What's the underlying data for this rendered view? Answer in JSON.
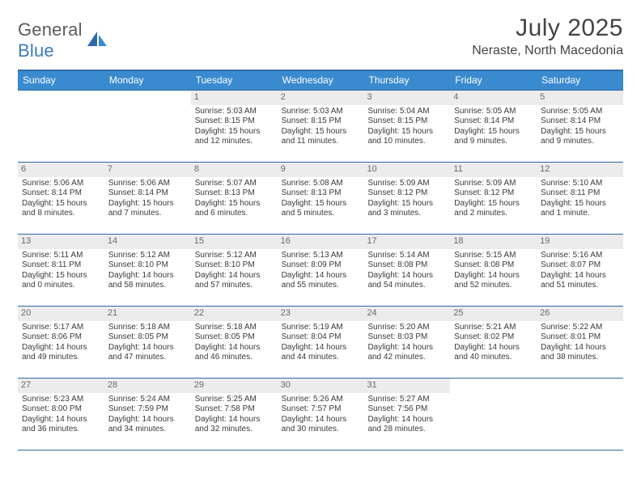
{
  "logo": {
    "text_a": "General",
    "text_b": "Blue"
  },
  "title": "July 2025",
  "location": "Neraste, North Macedonia",
  "header_bg": "#3a8ad0",
  "border_color": "#2f6aa8",
  "daynum_bg": "#ececec",
  "dow": [
    "Sunday",
    "Monday",
    "Tuesday",
    "Wednesday",
    "Thursday",
    "Friday",
    "Saturday"
  ],
  "weeks": [
    [
      null,
      null,
      {
        "n": "1",
        "sr": "Sunrise: 5:03 AM",
        "ss": "Sunset: 8:15 PM",
        "d1": "Daylight: 15 hours",
        "d2": "and 12 minutes."
      },
      {
        "n": "2",
        "sr": "Sunrise: 5:03 AM",
        "ss": "Sunset: 8:15 PM",
        "d1": "Daylight: 15 hours",
        "d2": "and 11 minutes."
      },
      {
        "n": "3",
        "sr": "Sunrise: 5:04 AM",
        "ss": "Sunset: 8:15 PM",
        "d1": "Daylight: 15 hours",
        "d2": "and 10 minutes."
      },
      {
        "n": "4",
        "sr": "Sunrise: 5:05 AM",
        "ss": "Sunset: 8:14 PM",
        "d1": "Daylight: 15 hours",
        "d2": "and 9 minutes."
      },
      {
        "n": "5",
        "sr": "Sunrise: 5:05 AM",
        "ss": "Sunset: 8:14 PM",
        "d1": "Daylight: 15 hours",
        "d2": "and 9 minutes."
      }
    ],
    [
      {
        "n": "6",
        "sr": "Sunrise: 5:06 AM",
        "ss": "Sunset: 8:14 PM",
        "d1": "Daylight: 15 hours",
        "d2": "and 8 minutes."
      },
      {
        "n": "7",
        "sr": "Sunrise: 5:06 AM",
        "ss": "Sunset: 8:14 PM",
        "d1": "Daylight: 15 hours",
        "d2": "and 7 minutes."
      },
      {
        "n": "8",
        "sr": "Sunrise: 5:07 AM",
        "ss": "Sunset: 8:13 PM",
        "d1": "Daylight: 15 hours",
        "d2": "and 6 minutes."
      },
      {
        "n": "9",
        "sr": "Sunrise: 5:08 AM",
        "ss": "Sunset: 8:13 PM",
        "d1": "Daylight: 15 hours",
        "d2": "and 5 minutes."
      },
      {
        "n": "10",
        "sr": "Sunrise: 5:09 AM",
        "ss": "Sunset: 8:12 PM",
        "d1": "Daylight: 15 hours",
        "d2": "and 3 minutes."
      },
      {
        "n": "11",
        "sr": "Sunrise: 5:09 AM",
        "ss": "Sunset: 8:12 PM",
        "d1": "Daylight: 15 hours",
        "d2": "and 2 minutes."
      },
      {
        "n": "12",
        "sr": "Sunrise: 5:10 AM",
        "ss": "Sunset: 8:11 PM",
        "d1": "Daylight: 15 hours",
        "d2": "and 1 minute."
      }
    ],
    [
      {
        "n": "13",
        "sr": "Sunrise: 5:11 AM",
        "ss": "Sunset: 8:11 PM",
        "d1": "Daylight: 15 hours",
        "d2": "and 0 minutes."
      },
      {
        "n": "14",
        "sr": "Sunrise: 5:12 AM",
        "ss": "Sunset: 8:10 PM",
        "d1": "Daylight: 14 hours",
        "d2": "and 58 minutes."
      },
      {
        "n": "15",
        "sr": "Sunrise: 5:12 AM",
        "ss": "Sunset: 8:10 PM",
        "d1": "Daylight: 14 hours",
        "d2": "and 57 minutes."
      },
      {
        "n": "16",
        "sr": "Sunrise: 5:13 AM",
        "ss": "Sunset: 8:09 PM",
        "d1": "Daylight: 14 hours",
        "d2": "and 55 minutes."
      },
      {
        "n": "17",
        "sr": "Sunrise: 5:14 AM",
        "ss": "Sunset: 8:08 PM",
        "d1": "Daylight: 14 hours",
        "d2": "and 54 minutes."
      },
      {
        "n": "18",
        "sr": "Sunrise: 5:15 AM",
        "ss": "Sunset: 8:08 PM",
        "d1": "Daylight: 14 hours",
        "d2": "and 52 minutes."
      },
      {
        "n": "19",
        "sr": "Sunrise: 5:16 AM",
        "ss": "Sunset: 8:07 PM",
        "d1": "Daylight: 14 hours",
        "d2": "and 51 minutes."
      }
    ],
    [
      {
        "n": "20",
        "sr": "Sunrise: 5:17 AM",
        "ss": "Sunset: 8:06 PM",
        "d1": "Daylight: 14 hours",
        "d2": "and 49 minutes."
      },
      {
        "n": "21",
        "sr": "Sunrise: 5:18 AM",
        "ss": "Sunset: 8:05 PM",
        "d1": "Daylight: 14 hours",
        "d2": "and 47 minutes."
      },
      {
        "n": "22",
        "sr": "Sunrise: 5:18 AM",
        "ss": "Sunset: 8:05 PM",
        "d1": "Daylight: 14 hours",
        "d2": "and 46 minutes."
      },
      {
        "n": "23",
        "sr": "Sunrise: 5:19 AM",
        "ss": "Sunset: 8:04 PM",
        "d1": "Daylight: 14 hours",
        "d2": "and 44 minutes."
      },
      {
        "n": "24",
        "sr": "Sunrise: 5:20 AM",
        "ss": "Sunset: 8:03 PM",
        "d1": "Daylight: 14 hours",
        "d2": "and 42 minutes."
      },
      {
        "n": "25",
        "sr": "Sunrise: 5:21 AM",
        "ss": "Sunset: 8:02 PM",
        "d1": "Daylight: 14 hours",
        "d2": "and 40 minutes."
      },
      {
        "n": "26",
        "sr": "Sunrise: 5:22 AM",
        "ss": "Sunset: 8:01 PM",
        "d1": "Daylight: 14 hours",
        "d2": "and 38 minutes."
      }
    ],
    [
      {
        "n": "27",
        "sr": "Sunrise: 5:23 AM",
        "ss": "Sunset: 8:00 PM",
        "d1": "Daylight: 14 hours",
        "d2": "and 36 minutes."
      },
      {
        "n": "28",
        "sr": "Sunrise: 5:24 AM",
        "ss": "Sunset: 7:59 PM",
        "d1": "Daylight: 14 hours",
        "d2": "and 34 minutes."
      },
      {
        "n": "29",
        "sr": "Sunrise: 5:25 AM",
        "ss": "Sunset: 7:58 PM",
        "d1": "Daylight: 14 hours",
        "d2": "and 32 minutes."
      },
      {
        "n": "30",
        "sr": "Sunrise: 5:26 AM",
        "ss": "Sunset: 7:57 PM",
        "d1": "Daylight: 14 hours",
        "d2": "and 30 minutes."
      },
      {
        "n": "31",
        "sr": "Sunrise: 5:27 AM",
        "ss": "Sunset: 7:56 PM",
        "d1": "Daylight: 14 hours",
        "d2": "and 28 minutes."
      },
      null,
      null
    ]
  ]
}
